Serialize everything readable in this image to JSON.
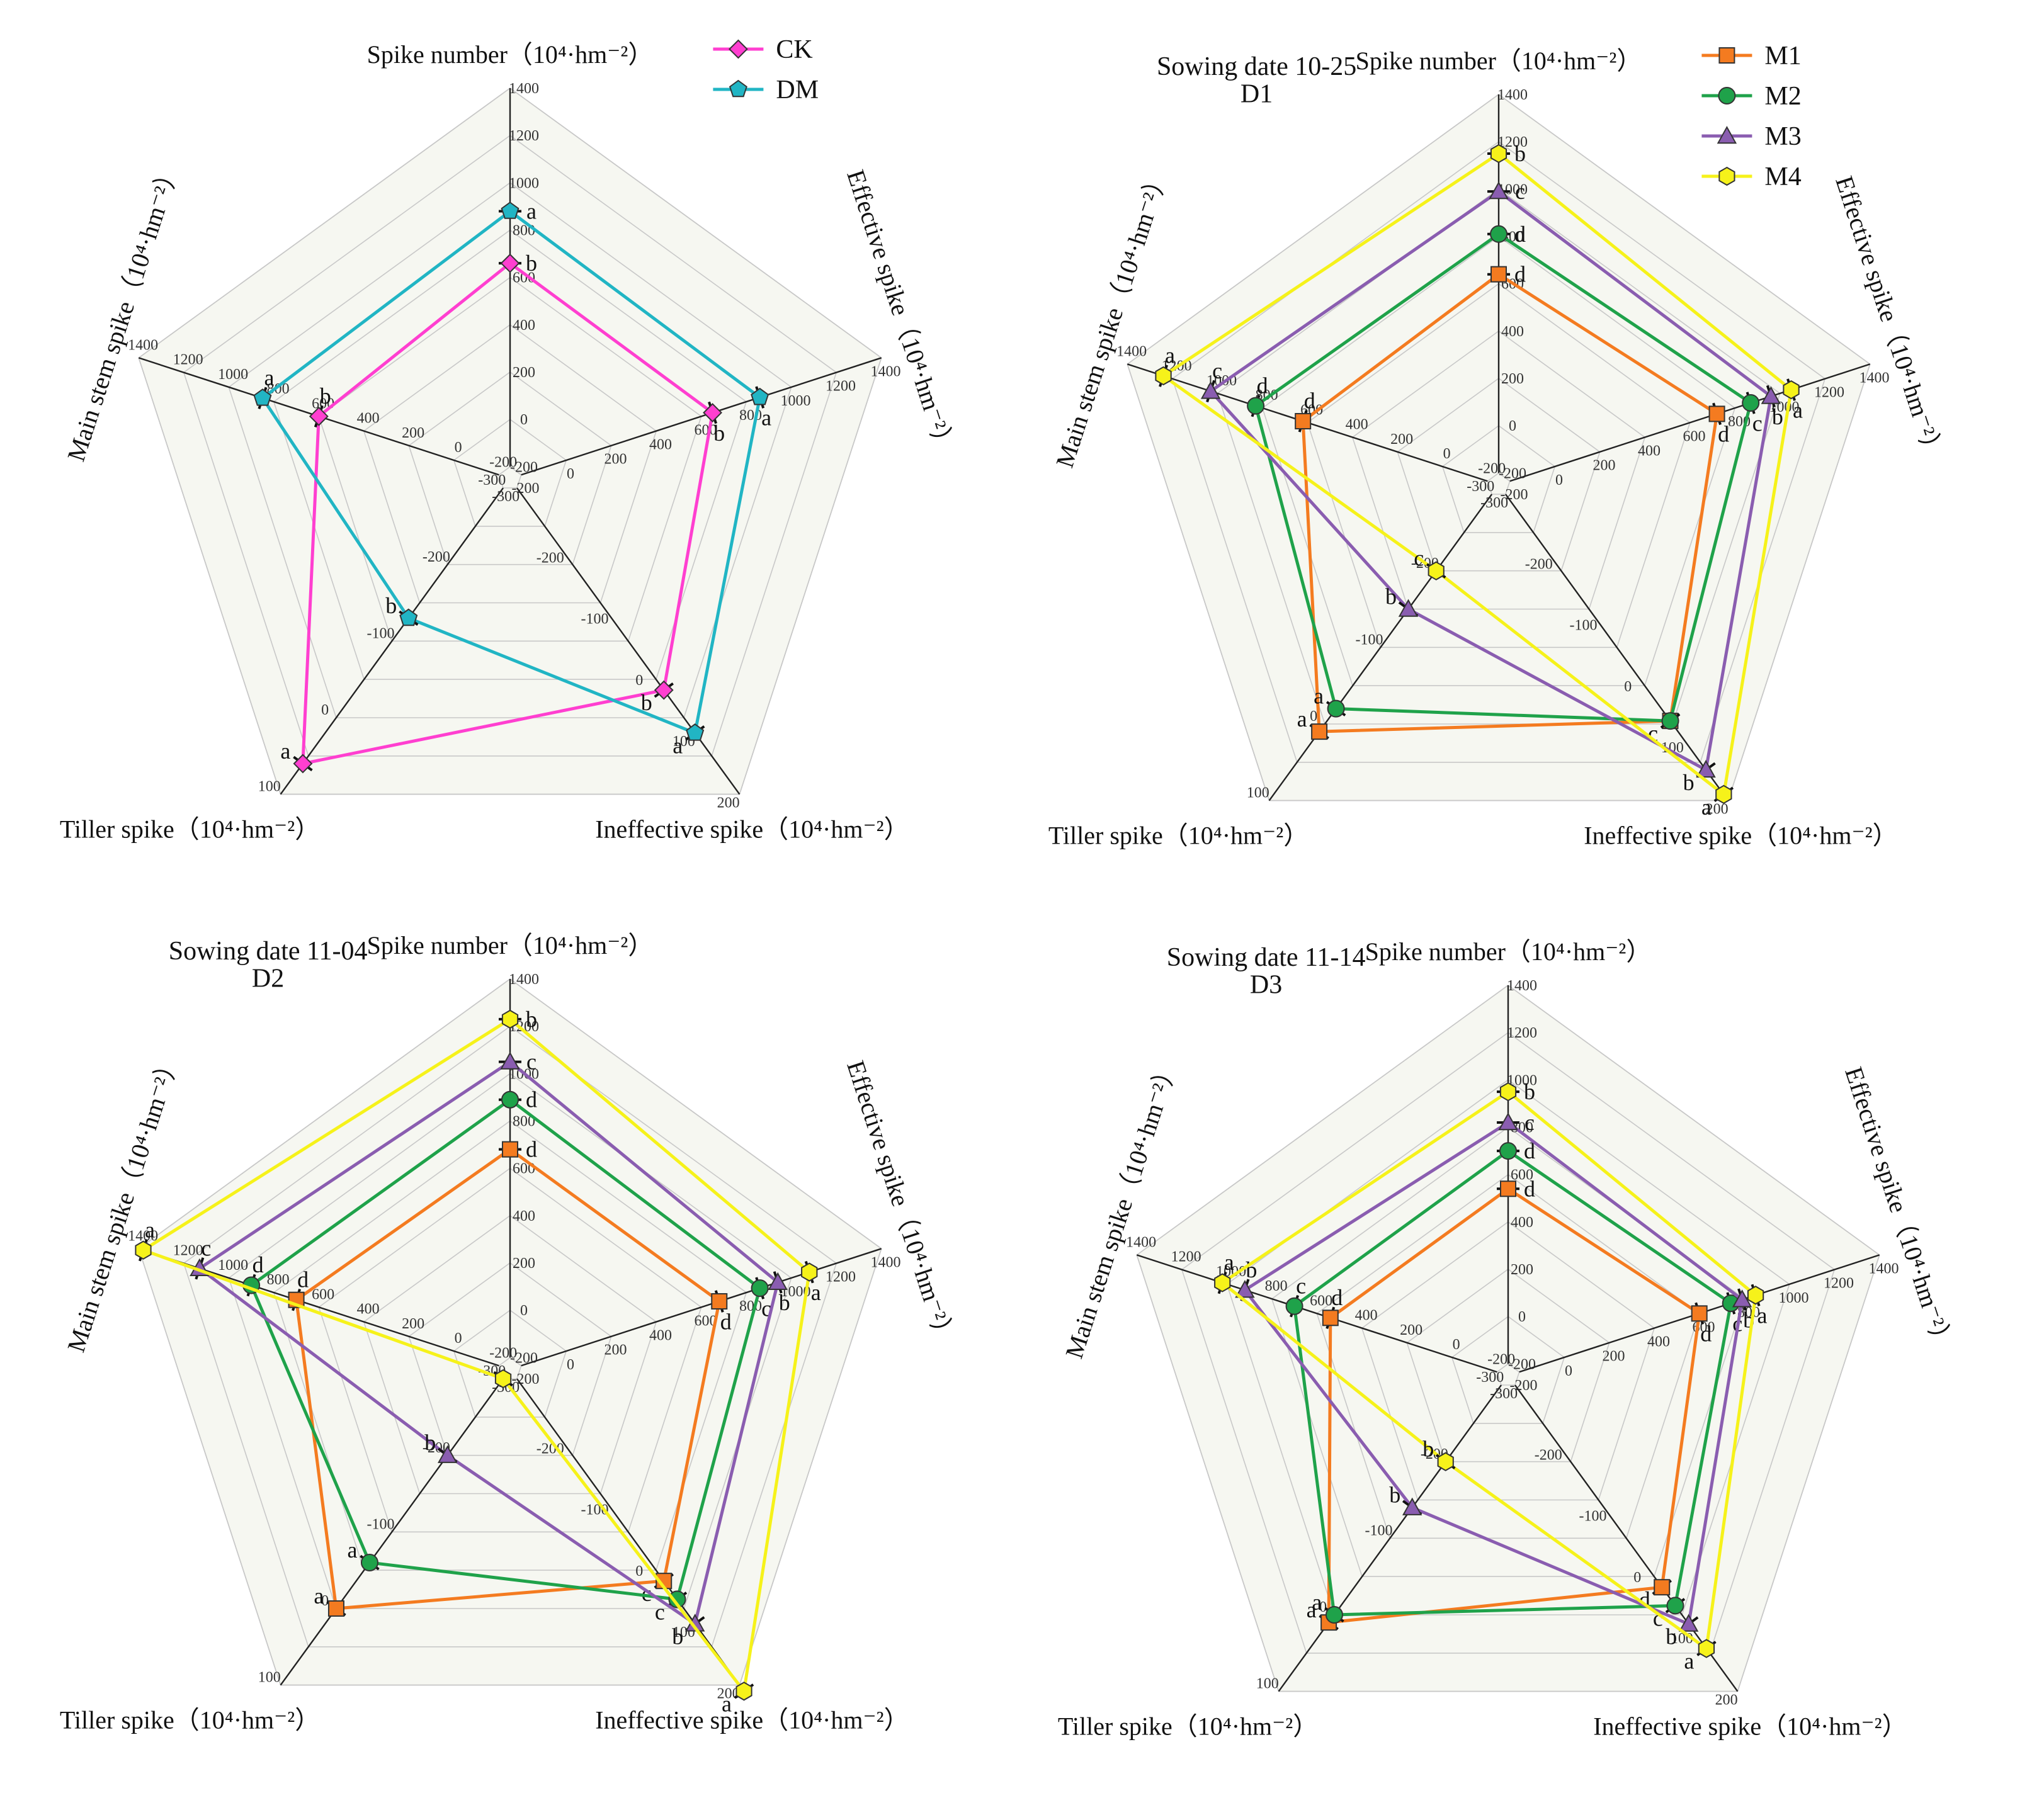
{
  "figure": {
    "axis_unit": "（10⁴·hm⁻²）",
    "colors": {
      "CK": "#ff3fd0",
      "DM": "#21b5c4",
      "M1": "#f47b20",
      "M2": "#1fa24a",
      "M3": "#8a5db0",
      "M4": "#f6f21a"
    },
    "markers": {
      "CK": "diamond",
      "DM": "pentagon",
      "M1": "square",
      "M2": "circle",
      "M3": "triangle",
      "M4": "hexagon"
    }
  },
  "chart_data": [
    {
      "type": "radar",
      "panel": "top-left",
      "title": "",
      "subtitle": "",
      "axes": [
        {
          "name": "Spike number",
          "unit": "（10⁴·hm⁻²）",
          "range": [
            -200,
            1400
          ],
          "ticks": [
            -200,
            0,
            200,
            400,
            600,
            800,
            1000,
            1200,
            1400
          ]
        },
        {
          "name": "Effective spike",
          "unit": "（10⁴·hm⁻²）",
          "range": [
            -200,
            1400
          ],
          "ticks": [
            -200,
            0,
            200,
            400,
            600,
            800,
            1000,
            1200,
            1400
          ]
        },
        {
          "name": "Ineffective spike",
          "unit": "（10⁴·hm⁻²）",
          "range": [
            -300,
            200
          ],
          "ticks": [
            -300,
            -200,
            -100,
            0,
            100,
            200
          ]
        },
        {
          "name": "Tiller spike",
          "unit": "（10⁴·hm⁻²）",
          "range": [
            -300,
            100
          ],
          "ticks": [
            -300,
            -200,
            -100,
            0,
            100
          ]
        },
        {
          "name": "Main stem spike",
          "unit": "（10⁴·hm⁻²）",
          "range": [
            -200,
            1400
          ],
          "ticks": [
            -200,
            0,
            200,
            400,
            600,
            800,
            1000,
            1200,
            1400
          ]
        }
      ],
      "legend": [
        "CK",
        "DM"
      ],
      "legend_position": "top-right",
      "series": [
        {
          "name": "CK",
          "values": [
            660,
            650,
            30,
            60,
            600
          ],
          "letters": [
            "b",
            "b",
            "b",
            "a",
            "b"
          ]
        },
        {
          "name": "DM",
          "values": [
            880,
            860,
            100,
            -130,
            850
          ],
          "letters": [
            "a",
            "a",
            "a",
            "b",
            "a"
          ]
        }
      ]
    },
    {
      "type": "radar",
      "panel": "top-right",
      "title": "Sowing date 10-25",
      "subtitle": "D1",
      "axes": [
        {
          "name": "Spike number",
          "unit": "（10⁴·hm⁻²）",
          "range": [
            -200,
            1400
          ],
          "ticks": [
            -200,
            0,
            200,
            400,
            600,
            800,
            1000,
            1200,
            1400
          ]
        },
        {
          "name": "Effective spike",
          "unit": "（10⁴·hm⁻²）",
          "range": [
            -200,
            1400
          ],
          "ticks": [
            -200,
            0,
            200,
            400,
            600,
            800,
            1000,
            1200,
            1400
          ]
        },
        {
          "name": "Ineffective spike",
          "unit": "（10⁴·hm⁻²）",
          "range": [
            -300,
            200
          ],
          "ticks": [
            -300,
            -200,
            -100,
            0,
            100,
            200
          ]
        },
        {
          "name": "Tiller spike",
          "unit": "（10⁴·hm⁻²）",
          "range": [
            -300,
            100
          ],
          "ticks": [
            -300,
            -200,
            -100,
            0,
            100
          ]
        },
        {
          "name": "Main stem spike",
          "unit": "（10⁴·hm⁻²）",
          "range": [
            -200,
            1400
          ],
          "ticks": [
            -200,
            0,
            200,
            400,
            600,
            800,
            1000,
            1200,
            1400
          ]
        }
      ],
      "legend": [
        "M1",
        "M2",
        "M3",
        "M4"
      ],
      "legend_position": "top-right",
      "series": [
        {
          "name": "M1",
          "values": [
            640,
            720,
            70,
            10,
            620
          ],
          "letters": [
            "d",
            "d",
            "c",
            "a",
            "d"
          ]
        },
        {
          "name": "M2",
          "values": [
            810,
            870,
            70,
            -20,
            830
          ],
          "letters": [
            "d",
            "c",
            "c",
            "a",
            "d"
          ]
        },
        {
          "name": "M3",
          "values": [
            990,
            960,
            150,
            -150,
            1030
          ],
          "letters": [
            "c",
            "b",
            "b",
            "b",
            "c"
          ]
        },
        {
          "name": "M4",
          "values": [
            1150,
            1050,
            190,
            -200,
            1240
          ],
          "letters": [
            "b",
            "a",
            "a",
            "c",
            "a"
          ]
        }
      ]
    },
    {
      "type": "radar",
      "panel": "bottom-left",
      "title": "Sowing date 11-04",
      "subtitle": "D2",
      "axes": [
        {
          "name": "Spike number",
          "unit": "（10⁴·hm⁻²）",
          "range": [
            -200,
            1400
          ],
          "ticks": [
            -200,
            0,
            200,
            400,
            600,
            800,
            1000,
            1200,
            1400
          ]
        },
        {
          "name": "Effective spike",
          "unit": "（10⁴·hm⁻²）",
          "range": [
            -200,
            1400
          ],
          "ticks": [
            -200,
            0,
            200,
            400,
            600,
            800,
            1000,
            1200,
            1400
          ]
        },
        {
          "name": "Ineffective spike",
          "unit": "（10⁴·hm⁻²）",
          "range": [
            -300,
            200
          ],
          "ticks": [
            -300,
            -200,
            -100,
            0,
            100,
            200
          ]
        },
        {
          "name": "Tiller spike",
          "unit": "（10⁴·hm⁻²）",
          "range": [
            -300,
            100
          ],
          "ticks": [
            -300,
            -200,
            -100,
            0,
            100
          ]
        },
        {
          "name": "Main stem spike",
          "unit": "（10⁴·hm⁻²）",
          "range": [
            -200,
            1400
          ],
          "ticks": [
            -200,
            0,
            200,
            400,
            600,
            800,
            1000,
            1200,
            1400
          ]
        }
      ],
      "legend": [],
      "legend_position": "none",
      "series": [
        {
          "name": "M1",
          "values": [
            680,
            680,
            30,
            0,
            700
          ],
          "letters": [
            "d",
            "d",
            "c",
            "a",
            "d"
          ]
        },
        {
          "name": "M2",
          "values": [
            890,
            860,
            60,
            -60,
            900
          ],
          "letters": [
            "d",
            "c",
            "c",
            "a",
            "d"
          ]
        },
        {
          "name": "M3",
          "values": [
            1050,
            940,
            100,
            -200,
            1130
          ],
          "letters": [
            "c",
            "b",
            "b",
            "b",
            "c"
          ]
        },
        {
          "name": "M4",
          "values": [
            1230,
            1080,
            210,
            -300,
            1380
          ],
          "letters": [
            "b",
            "a",
            "a",
            "",
            "a"
          ]
        }
      ]
    },
    {
      "type": "radar",
      "panel": "bottom-right",
      "title": "Sowing date 11-14",
      "subtitle": "D3",
      "axes": [
        {
          "name": "Spike number",
          "unit": "（10⁴·hm⁻²）",
          "range": [
            -200,
            1400
          ],
          "ticks": [
            -200,
            0,
            200,
            400,
            600,
            800,
            1000,
            1200,
            1400
          ]
        },
        {
          "name": "Effective spike",
          "unit": "（10⁴·hm⁻²）",
          "range": [
            -200,
            1400
          ],
          "ticks": [
            -200,
            0,
            200,
            400,
            600,
            800,
            1000,
            1200,
            1400
          ]
        },
        {
          "name": "Ineffective spike",
          "unit": "（10⁴·hm⁻²）",
          "range": [
            -300,
            200
          ],
          "ticks": [
            -300,
            -200,
            -100,
            0,
            100,
            200
          ]
        },
        {
          "name": "Tiller spike",
          "unit": "（10⁴·hm⁻²）",
          "range": [
            -300,
            100
          ],
          "ticks": [
            -300,
            -200,
            -100,
            0,
            100
          ]
        },
        {
          "name": "Main stem spike",
          "unit": "（10⁴·hm⁻²）",
          "range": [
            -200,
            1400
          ],
          "ticks": [
            -200,
            0,
            200,
            400,
            600,
            800,
            1000,
            1200,
            1400
          ]
        }
      ],
      "legend": [],
      "legend_position": "none",
      "series": [
        {
          "name": "M1",
          "values": [
            540,
            600,
            30,
            10,
            540
          ],
          "letters": [
            "d",
            "d",
            "d",
            "a",
            "d"
          ]
        },
        {
          "name": "M2",
          "values": [
            700,
            740,
            60,
            0,
            700
          ],
          "letters": [
            "d",
            "c",
            "c",
            "a",
            "c"
          ]
        },
        {
          "name": "M3",
          "values": [
            820,
            790,
            90,
            -140,
            920
          ],
          "letters": [
            "c",
            "b",
            "b",
            "b",
            "b"
          ]
        },
        {
          "name": "M4",
          "values": [
            950,
            850,
            130,
            -200,
            1020
          ],
          "letters": [
            "b",
            "a",
            "a",
            "b",
            "a"
          ]
        }
      ]
    }
  ]
}
